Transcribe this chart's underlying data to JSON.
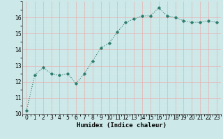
{
  "x": [
    0,
    1,
    2,
    3,
    4,
    5,
    6,
    7,
    8,
    9,
    10,
    11,
    12,
    13,
    14,
    15,
    16,
    17,
    18,
    19,
    20,
    21,
    22,
    23
  ],
  "y": [
    10.2,
    12.4,
    12.9,
    12.5,
    12.4,
    12.5,
    11.9,
    12.5,
    13.3,
    14.1,
    14.4,
    15.1,
    15.7,
    15.9,
    16.1,
    16.1,
    16.6,
    16.1,
    16.0,
    15.8,
    15.7,
    15.7,
    15.8,
    15.7
  ],
  "line_color": "#2e7d6e",
  "bg_color": "#cce8e8",
  "grid_major_color": "#e8b0b0",
  "grid_minor_color": "#dde8e8",
  "xlabel": "Humidex (Indice chaleur)",
  "ylim": [
    10,
    17
  ],
  "xlim": [
    -0.5,
    23.5
  ],
  "yticks": [
    10,
    11,
    12,
    13,
    14,
    15,
    16
  ],
  "xtick_labels": [
    "0",
    "1",
    "2",
    "3",
    "4",
    "5",
    "6",
    "7",
    "8",
    "9",
    "10",
    "11",
    "12",
    "13",
    "14",
    "15",
    "16",
    "17",
    "18",
    "19",
    "20",
    "21",
    "22",
    "23"
  ],
  "xlabel_fontsize": 6.5,
  "tick_fontsize": 5.5,
  "marker": "D",
  "marker_size": 1.8,
  "linewidth": 0.8
}
